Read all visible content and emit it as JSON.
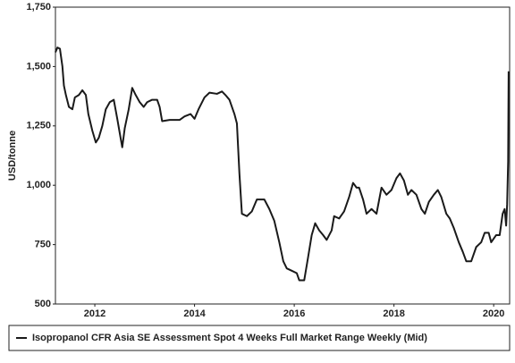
{
  "chart_data": {
    "type": "line",
    "y_label": "USD/tonne",
    "xlim": [
      2011.21,
      2020.32
    ],
    "xticks": [
      2012,
      2014,
      2016,
      2018,
      2020
    ],
    "ylim": [
      500,
      1750
    ],
    "yticks": [
      500,
      750,
      {
        "value": 1000,
        "label": "1,000"
      },
      {
        "value": 1250,
        "label": "1,250"
      },
      {
        "value": 1500,
        "label": "1,500"
      },
      {
        "value": 1750,
        "label": "1,750"
      }
    ],
    "grid": false,
    "legend": "bottom",
    "x": [
      2011.21,
      2011.25,
      2011.3,
      2011.35,
      2011.38,
      2011.42,
      2011.48,
      2011.55,
      2011.6,
      2011.68,
      2011.75,
      2011.82,
      2011.87,
      2011.95,
      2012.02,
      2012.08,
      2012.15,
      2012.22,
      2012.3,
      2012.38,
      2012.45,
      2012.5,
      2012.55,
      2012.6,
      2012.68,
      2012.75,
      2012.82,
      2012.9,
      2012.98,
      2013.05,
      2013.15,
      2013.25,
      2013.3,
      2013.35,
      2013.5,
      2013.7,
      2013.8,
      2013.92,
      2014.0,
      2014.08,
      2014.2,
      2014.3,
      2014.45,
      2014.55,
      2014.62,
      2014.7,
      2014.8,
      2014.85,
      2014.9,
      2014.95,
      2015.05,
      2015.15,
      2015.25,
      2015.4,
      2015.5,
      2015.6,
      2015.7,
      2015.78,
      2015.85,
      2015.95,
      2016.05,
      2016.1,
      2016.2,
      2016.28,
      2016.35,
      2016.42,
      2016.5,
      2016.58,
      2016.65,
      2016.75,
      2016.8,
      2016.9,
      2017.0,
      2017.1,
      2017.18,
      2017.25,
      2017.3,
      2017.38,
      2017.45,
      2017.55,
      2017.65,
      2017.75,
      2017.85,
      2017.95,
      2018.05,
      2018.12,
      2018.2,
      2018.28,
      2018.35,
      2018.45,
      2018.55,
      2018.62,
      2018.7,
      2018.8,
      2018.88,
      2018.95,
      2019.05,
      2019.12,
      2019.2,
      2019.3,
      2019.38,
      2019.45,
      2019.55,
      2019.65,
      2019.75,
      2019.82,
      2019.9,
      2019.95,
      2020.05,
      2020.12,
      2020.18,
      2020.22,
      2020.25,
      2020.27,
      2020.29,
      2020.3
    ],
    "series": [
      {
        "name": "Isopropanol CFR Asia SE Assessment Spot 4 Weeks Full Market Range Weekly (Mid)",
        "color": "#1a1a1a",
        "values": [
          1560,
          1580,
          1575,
          1500,
          1420,
          1380,
          1330,
          1320,
          1370,
          1380,
          1400,
          1380,
          1300,
          1230,
          1180,
          1200,
          1250,
          1320,
          1350,
          1360,
          1280,
          1220,
          1160,
          1240,
          1320,
          1410,
          1380,
          1350,
          1330,
          1350,
          1360,
          1360,
          1330,
          1270,
          1275,
          1275,
          1290,
          1300,
          1280,
          1320,
          1370,
          1390,
          1385,
          1395,
          1380,
          1360,
          1300,
          1260,
          1050,
          880,
          870,
          890,
          940,
          940,
          900,
          850,
          760,
          680,
          650,
          640,
          630,
          600,
          600,
          700,
          790,
          840,
          810,
          790,
          770,
          810,
          870,
          860,
          890,
          950,
          1010,
          990,
          990,
          940,
          880,
          900,
          880,
          990,
          960,
          980,
          1030,
          1050,
          1020,
          960,
          980,
          960,
          900,
          880,
          930,
          960,
          980,
          950,
          880,
          860,
          820,
          760,
          720,
          680,
          680,
          740,
          760,
          800,
          800,
          760,
          790,
          790,
          880,
          900,
          830,
          920,
          1100,
          1480
        ]
      }
    ]
  }
}
